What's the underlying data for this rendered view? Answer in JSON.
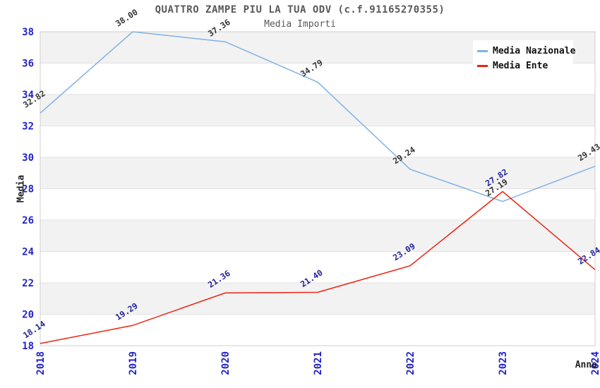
{
  "title": "QUATTRO ZAMPE PIU LA TUA ODV (c.f.91165270355)",
  "subtitle": "Media Importi",
  "axis": {
    "y_label": "Media",
    "x_label": "Anno"
  },
  "legend": {
    "items": [
      {
        "label": "Media Nazionale",
        "color": "#7fb2e5"
      },
      {
        "label": "Media Ente",
        "color": "#ee2211"
      }
    ]
  },
  "colors": {
    "tick_label": "#2222cc",
    "band_gray": "#f2f2f2",
    "band_white": "#ffffff",
    "gridline": "#e2e2e2",
    "plot_border": "#cfcfcf",
    "title_gray": "#595959"
  },
  "chart_data": {
    "type": "line",
    "title": "QUATTRO ZAMPE PIU LA TUA ODV (c.f.91165270355)",
    "subtitle": "Media Importi",
    "xlabel": "Anno",
    "ylabel": "Media",
    "x": [
      "2018",
      "2019",
      "2020",
      "2021",
      "2022",
      "2023",
      "2024"
    ],
    "series": [
      {
        "name": "Media Nazionale",
        "color": "#7fb2e5",
        "label_color": "#333333",
        "values": [
          32.82,
          38.0,
          37.36,
          34.79,
          29.24,
          27.19,
          29.43
        ]
      },
      {
        "name": "Media Ente",
        "color": "#ee2211",
        "label_color": "#222299",
        "values": [
          18.14,
          19.29,
          21.36,
          21.4,
          23.09,
          27.82,
          22.84
        ]
      }
    ],
    "ylim": [
      18,
      38
    ],
    "ytick_step": 2,
    "grid": "horizontal-bands-alternating",
    "legend_position": "top-right",
    "x_tick_rotation": -90,
    "point_label_rotation": -33
  }
}
